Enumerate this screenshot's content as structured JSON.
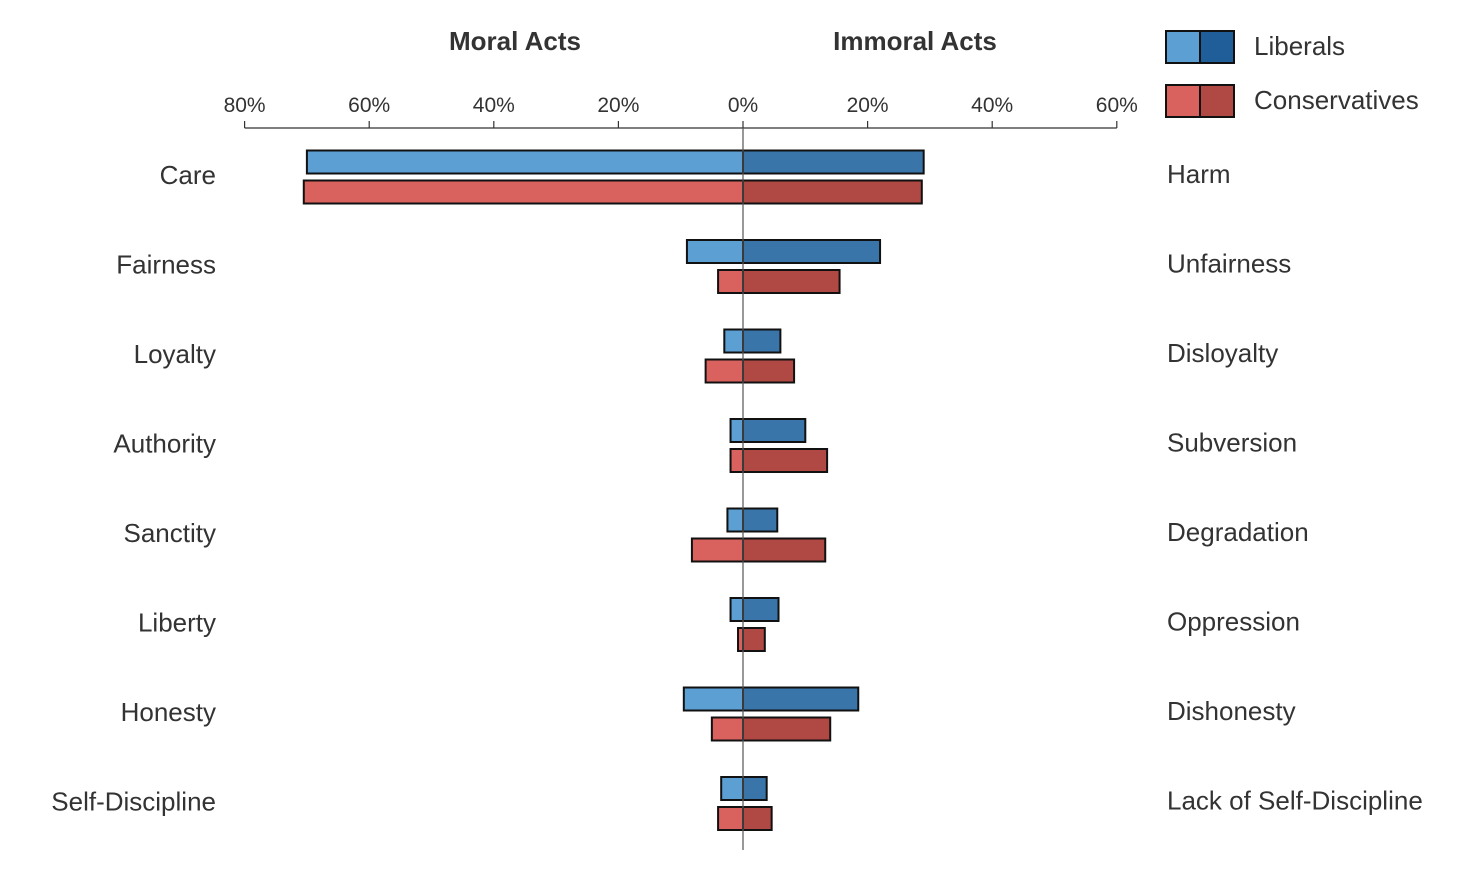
{
  "chart_data": {
    "type": "bar",
    "orientation": "horizontal-diverging",
    "headers": {
      "left": "Moral Acts",
      "right": "Immoral Acts"
    },
    "left_categories": [
      "Care",
      "Fairness",
      "Loyalty",
      "Authority",
      "Sanctity",
      "Liberty",
      "Honesty",
      "Self-Discipline"
    ],
    "right_categories": [
      "Harm",
      "Unfairness",
      "Disloyalty",
      "Subversion",
      "Degradation",
      "Oppression",
      "Dishonesty",
      "Lack of Self-Discipline"
    ],
    "x_ticks": {
      "left": [
        {
          "v": 80,
          "label": "80%"
        },
        {
          "v": 60,
          "label": "60%"
        },
        {
          "v": 40,
          "label": "40%"
        },
        {
          "v": 20,
          "label": "20%"
        },
        {
          "v": 0,
          "label": "0%"
        }
      ],
      "right": [
        {
          "v": 20,
          "label": "20%"
        },
        {
          "v": 40,
          "label": "40%"
        },
        {
          "v": 60,
          "label": "60%"
        }
      ]
    },
    "xlim": {
      "left": [
        0,
        80
      ],
      "right": [
        0,
        60
      ]
    },
    "unit": "%",
    "series": [
      {
        "name": "Liberals",
        "color_left": "#5b9fd3",
        "color_right": "#3a75aa",
        "moral": [
          70.0,
          9.0,
          3.0,
          2.0,
          2.5,
          2.0,
          9.5,
          3.5
        ],
        "immoral": [
          29.0,
          22.0,
          6.0,
          10.0,
          5.5,
          5.7,
          18.5,
          3.8
        ]
      },
      {
        "name": "Conservatives",
        "color_left": "#d9625e",
        "color_right": "#b04844",
        "moral": [
          70.5,
          4.0,
          6.0,
          2.0,
          8.2,
          0.8,
          5.0,
          4.0
        ],
        "immoral": [
          28.7,
          15.5,
          8.2,
          13.5,
          13.2,
          3.5,
          14.0,
          4.6
        ]
      }
    ],
    "legend": {
      "position": "top-right",
      "entries": [
        {
          "label": "Liberals",
          "color_left": "#5b9fd3",
          "color_right": "#205e9a"
        },
        {
          "label": "Conservatives",
          "color_left": "#d9625e",
          "color_right": "#b04844"
        }
      ]
    },
    "grid": false
  }
}
